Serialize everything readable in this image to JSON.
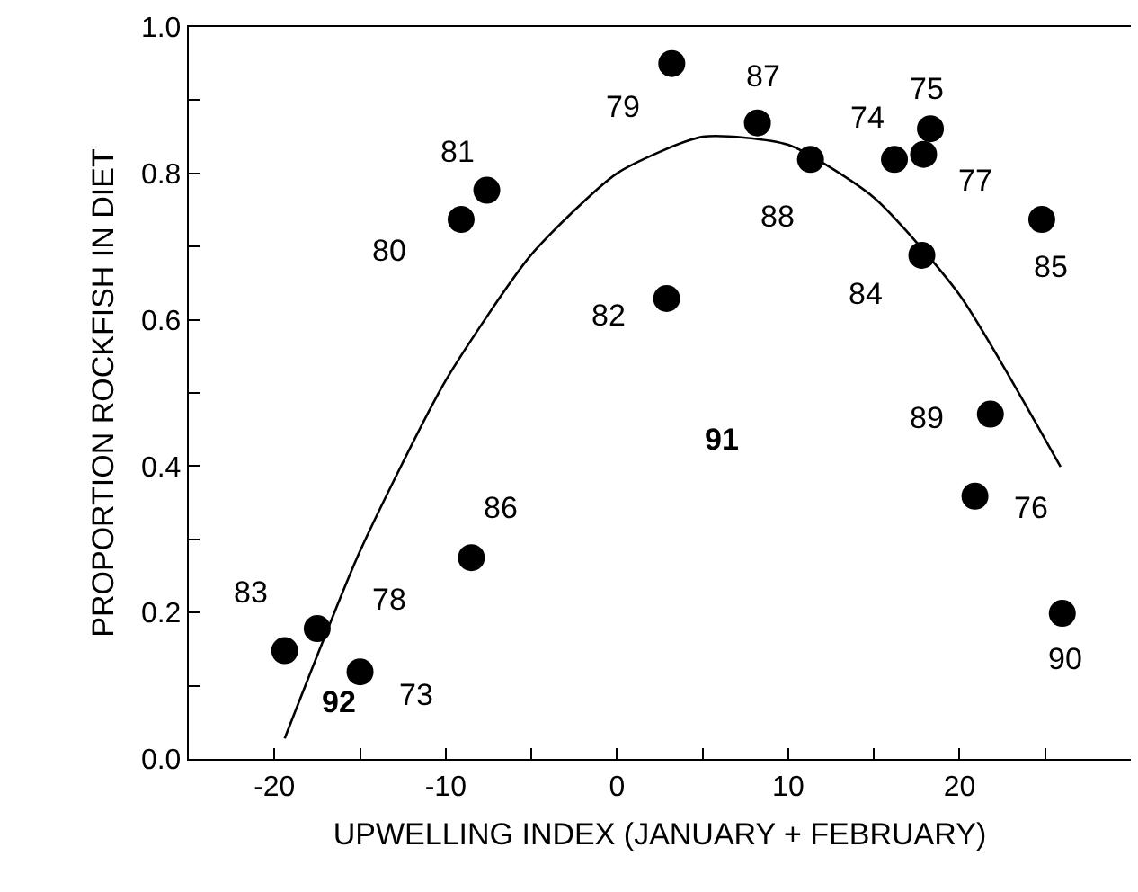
{
  "chart_data": {
    "type": "scatter",
    "xlabel": "UPWELLING INDEX (JANUARY + FEBRUARY)",
    "ylabel": "PROPORTION ROCKFISH IN DIET",
    "xlim": [
      -25,
      30
    ],
    "xticks": [
      {
        "value": -25,
        "label": null
      },
      -20,
      {
        "value": -15,
        "label": null
      },
      -10,
      {
        "value": -5,
        "label": null
      },
      0,
      {
        "value": 5,
        "label": null
      },
      10,
      {
        "value": 15,
        "label": null
      },
      20,
      {
        "value": 25,
        "label": null
      }
    ],
    "ylim": [
      0,
      1
    ],
    "yticks": [
      "0.0",
      {
        "value": 0.1,
        "label": null
      },
      0.2,
      {
        "value": 0.3,
        "label": null
      },
      0.4,
      {
        "value": 0.5,
        "label": null
      },
      0.6,
      {
        "value": 0.7,
        "label": null
      },
      0.8,
      {
        "value": 0.9,
        "label": null
      },
      "1.0"
    ],
    "grid": false,
    "series": [
      {
        "marker": "circle",
        "color": "#000000",
        "x": [
          -7.6,
          -9.1,
          2.9,
          3.2,
          8.2,
          11.3,
          16.2,
          17.9,
          18.3,
          17.8,
          24.8,
          21.8,
          20.9,
          26.0,
          -19.4,
          -17.5,
          -15.0,
          -8.5
        ],
        "values": [
          0.777,
          0.737,
          0.629,
          0.95,
          0.869,
          0.819,
          0.819,
          0.826,
          0.861,
          0.688,
          0.737,
          0.471,
          0.359,
          0.199,
          0.148,
          0.178,
          0.119,
          0.275
        ]
      },
      {
        "type": "line",
        "marker": "none",
        "line_style": "solid",
        "color": "#000000",
        "x": [
          -19.4,
          -15,
          -10,
          -5,
          0,
          5,
          10,
          15,
          20,
          25.9
        ],
        "values": [
          0.028,
          0.284,
          0.517,
          0.689,
          0.8,
          0.85,
          0.839,
          0.767,
          0.634,
          0.399
        ]
      }
    ],
    "annotations": [
      {
        "text": "81",
        "x": -7.6,
        "y": 0.777
      },
      {
        "text": "80",
        "x": -9.1,
        "y": 0.737
      },
      {
        "text": "82",
        "x": 2.9,
        "y": 0.629
      },
      {
        "text": "79",
        "x": 3.2,
        "y": 0.95
      },
      {
        "text": "87",
        "x": 8.2,
        "y": 0.869
      },
      {
        "text": "88",
        "x": 11.3,
        "y": 0.819
      },
      {
        "text": "74",
        "x": 16.2,
        "y": 0.819
      },
      {
        "text": "77",
        "x": 17.9,
        "y": 0.826
      },
      {
        "text": "75",
        "x": 18.3,
        "y": 0.861
      },
      {
        "text": "84",
        "x": 17.8,
        "y": 0.688
      },
      {
        "text": "85",
        "x": 24.8,
        "y": 0.737
      },
      {
        "text": "89",
        "x": 21.8,
        "y": 0.471
      },
      {
        "text": "76",
        "x": 20.9,
        "y": 0.359
      },
      {
        "text": "90",
        "x": 26.0,
        "y": 0.199
      },
      {
        "text": "83",
        "x": -19.4,
        "y": 0.148
      },
      {
        "text": "78",
        "x": -17.5,
        "y": 0.178
      },
      {
        "text": "73",
        "x": -15.0,
        "y": 0.119
      },
      {
        "text": "86",
        "x": -8.5,
        "y": 0.275
      },
      "91",
      "92"
    ]
  }
}
